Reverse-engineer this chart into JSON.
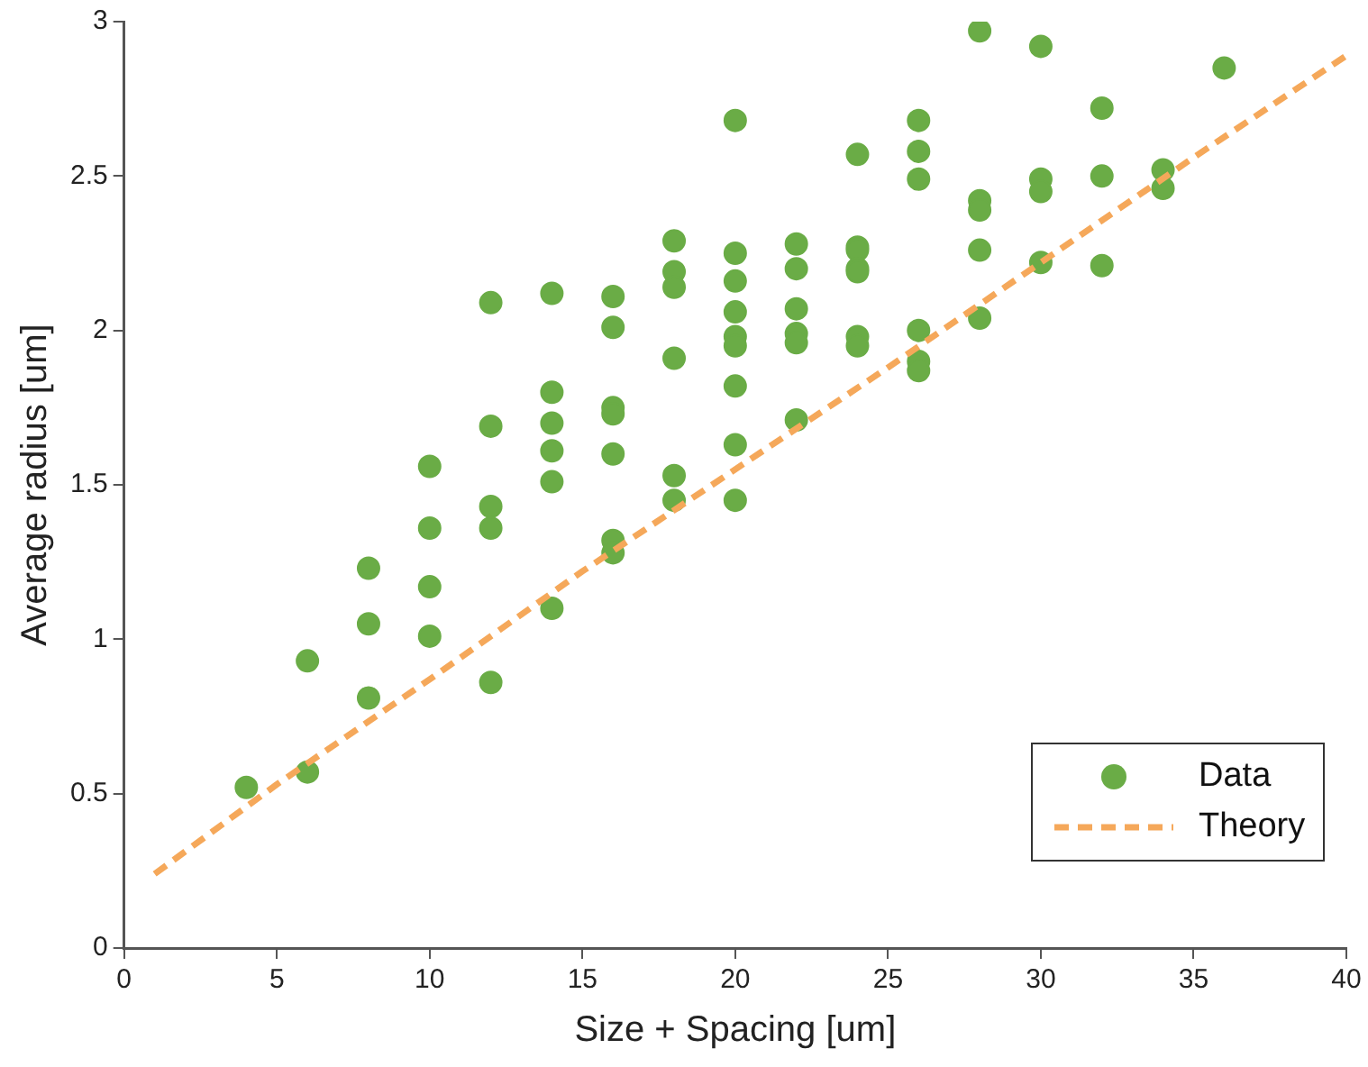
{
  "chart_data": {
    "type": "scatter",
    "xlabel": "Size + Spacing [um]",
    "ylabel": "Average radius [um]",
    "xlim": [
      0,
      40
    ],
    "xticks": [
      0,
      5,
      10,
      15,
      20,
      25,
      30,
      35,
      40
    ],
    "ylim": [
      0,
      3
    ],
    "yticks": [
      0,
      0.5,
      1,
      1.5,
      2,
      2.5,
      3
    ],
    "grid": false,
    "legend": "bottom right",
    "marker": "circle",
    "series": [
      {
        "name": "Data",
        "color": "#6aac46",
        "x": [
          4,
          6,
          6,
          8,
          8,
          8,
          10,
          10,
          10,
          10,
          12,
          12,
          12,
          12,
          12,
          14,
          14,
          14,
          14,
          14,
          14,
          16,
          16,
          16,
          16,
          16,
          16,
          16,
          18,
          18,
          18,
          18,
          18,
          18,
          20,
          20,
          20,
          20,
          20,
          20,
          20,
          20,
          20,
          22,
          22,
          22,
          22,
          22,
          22,
          24,
          24,
          24,
          24,
          24,
          24,
          24,
          26,
          26,
          26,
          26,
          26,
          26,
          28,
          28,
          28,
          28,
          28,
          30,
          30,
          30,
          30,
          32,
          32,
          32,
          34,
          34,
          36
        ],
        "values": [
          0.52,
          0.93,
          0.57,
          1.23,
          1.05,
          0.81,
          1.56,
          1.36,
          1.17,
          1.01,
          2.09,
          1.69,
          1.43,
          1.36,
          0.86,
          2.12,
          1.8,
          1.7,
          1.61,
          1.51,
          1.1,
          2.11,
          2.01,
          1.75,
          1.73,
          1.6,
          1.32,
          1.28,
          2.29,
          2.19,
          2.14,
          1.91,
          1.53,
          1.45,
          2.68,
          2.25,
          2.16,
          2.06,
          1.98,
          1.95,
          1.82,
          1.63,
          1.45,
          2.28,
          2.2,
          2.07,
          1.99,
          1.96,
          1.71,
          2.57,
          2.27,
          2.26,
          2.2,
          2.19,
          1.98,
          1.95,
          2.68,
          2.58,
          2.49,
          2.0,
          1.9,
          1.87,
          2.97,
          2.42,
          2.39,
          2.26,
          2.04,
          2.92,
          2.49,
          2.45,
          2.22,
          2.72,
          2.5,
          2.21,
          2.52,
          2.46,
          2.85
        ]
      },
      {
        "name": "Theory",
        "type": "line",
        "color": "#f5a85a",
        "line_style": "dashed",
        "marker": "none",
        "x": [
          1,
          5,
          10,
          15,
          20,
          25,
          30,
          35,
          40
        ],
        "values": [
          0.24,
          0.53,
          0.87,
          1.22,
          1.55,
          1.88,
          2.22,
          2.56,
          2.89
        ]
      }
    ]
  }
}
